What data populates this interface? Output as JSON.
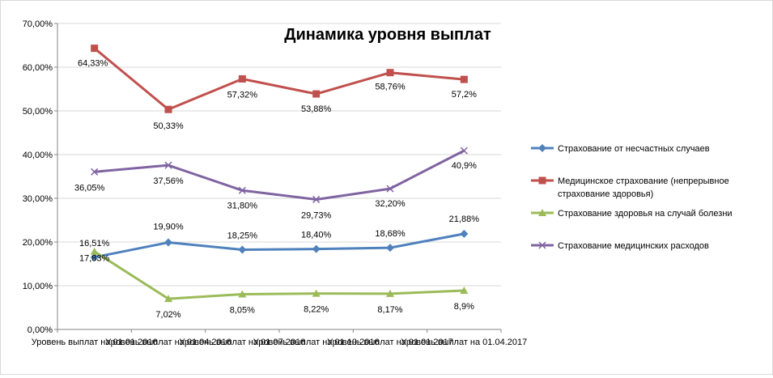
{
  "chart_data": {
    "type": "line",
    "title": "Динамика уровня выплат",
    "xlabel": "",
    "ylabel": "",
    "ylim": [
      0,
      70
    ],
    "y_ticks": [
      "0,00%",
      "10,00%",
      "20,00%",
      "30,00%",
      "40,00%",
      "50,00%",
      "60,00%",
      "70,00%"
    ],
    "grid": true,
    "legend_position": "right",
    "categories": [
      "Уровень выплат на 01.01.2016",
      "Уровень выплат на 01.04.2016",
      "Уровень выплат на 01.07.2016",
      "Уровень выплат на 01.10.2016",
      "Уровень выплат на 01.01.2017",
      "Уровень выплат на 01.04.2017"
    ],
    "series": [
      {
        "name": "Страхование от несчастных случаев",
        "color": "#4F81BD",
        "marker": "diamond",
        "values": [
          16.51,
          19.9,
          18.25,
          18.4,
          18.68,
          21.88
        ],
        "labels": [
          "16,51%",
          "19,90%",
          "18,25%",
          "18,40%",
          "18,68%",
          "21,88%"
        ]
      },
      {
        "name": "Медицинское страхование (непрерывное страхование здоровья)",
        "color": "#C0504D",
        "marker": "square",
        "values": [
          64.33,
          50.33,
          57.32,
          53.88,
          58.76,
          57.2
        ],
        "labels": [
          "64,33%",
          "50,33%",
          "57,32%",
          "53,88%",
          "58,76%",
          "57,2%"
        ]
      },
      {
        "name": "Страхование здоровья на случай болезни",
        "color": "#9BBB59",
        "marker": "triangle",
        "values": [
          17.83,
          7.02,
          8.05,
          8.22,
          8.17,
          8.9
        ],
        "labels": [
          "17,83%",
          "7,02%",
          "8,05%",
          "8,22%",
          "8,17%",
          "8,9%"
        ]
      },
      {
        "name": "Страхование медицинских расходов",
        "color": "#8064A2",
        "marker": "x",
        "values": [
          36.05,
          37.56,
          31.8,
          29.73,
          32.2,
          40.9
        ],
        "labels": [
          "36,05%",
          "37,56%",
          "31,80%",
          "29,73%",
          "32,20%",
          "40,9%"
        ]
      }
    ]
  }
}
